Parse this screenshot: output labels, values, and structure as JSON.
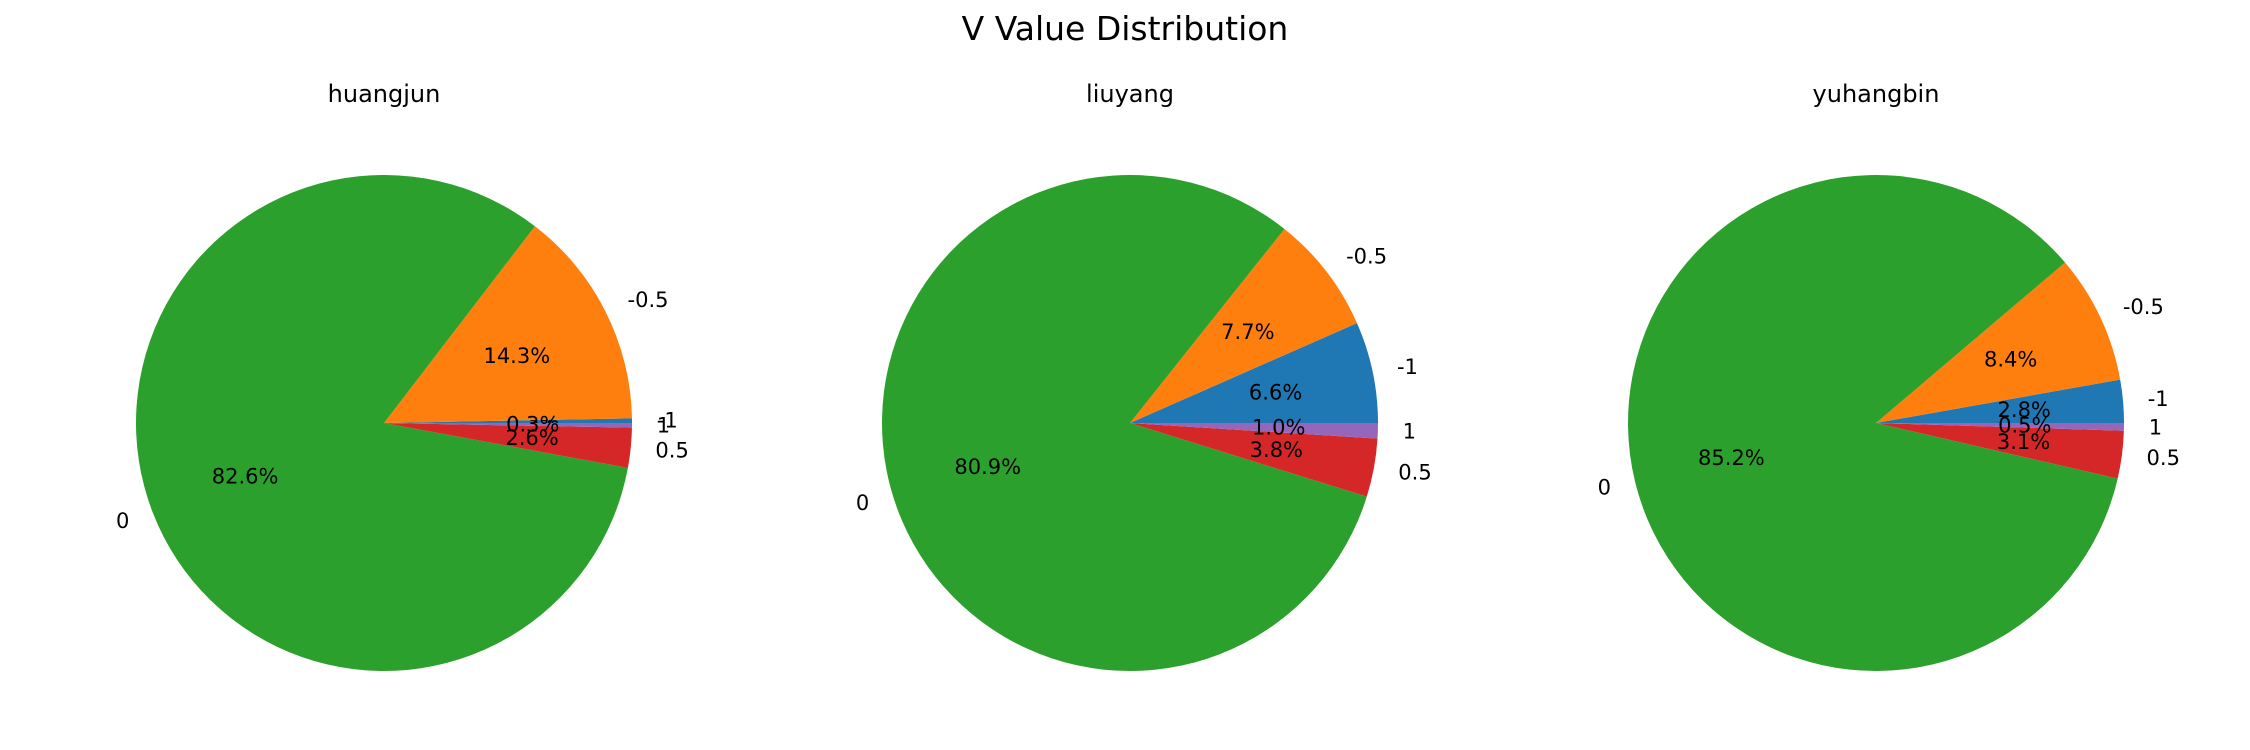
{
  "figure_title": "V Value Distribution",
  "chart_data": [
    {
      "type": "pie",
      "title": "huangjun",
      "categories": [
        "-1",
        "-0.5",
        "0",
        "0.5",
        "1"
      ],
      "values": [
        0.3,
        14.3,
        82.6,
        2.6,
        0.3
      ],
      "labels": [
        "0.3%",
        "14.3%",
        "82.6%",
        "2.6%",
        "0.3%"
      ]
    },
    {
      "type": "pie",
      "title": "liuyang",
      "categories": [
        "-1",
        "-0.5",
        "0",
        "0.5",
        "1"
      ],
      "values": [
        6.6,
        7.7,
        80.9,
        3.8,
        1.0
      ],
      "labels": [
        "6.6%",
        "7.7%",
        "80.9%",
        "3.8%",
        "1.0%"
      ]
    },
    {
      "type": "pie",
      "title": "yuhangbin",
      "categories": [
        "-1",
        "-0.5",
        "0",
        "0.5",
        "1"
      ],
      "values": [
        2.8,
        8.4,
        85.2,
        3.1,
        0.5
      ],
      "labels": [
        "2.8%",
        "8.4%",
        "85.2%",
        "3.1%",
        "0.5%"
      ]
    }
  ],
  "colors": {
    "-1": "#1f77b4",
    "-0.5": "#ff7f0e",
    "0": "#2ca02c",
    "0.5": "#d62728",
    "1": "#9467bd"
  }
}
